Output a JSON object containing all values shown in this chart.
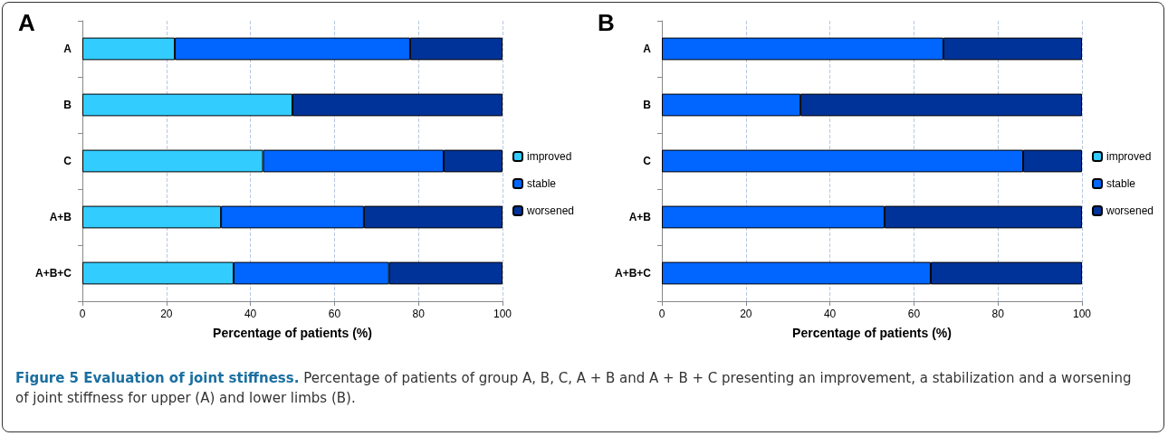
{
  "chart_data": [
    {
      "type": "bar",
      "title": "A",
      "orientation": "horizontal",
      "stacked": true,
      "categories": [
        "A",
        "B",
        "C",
        "A+B",
        "A+B+C"
      ],
      "xlabel": "Percentage of patients (%)",
      "xlim": [
        0,
        100
      ],
      "xticks": [
        0,
        20,
        40,
        60,
        80,
        100
      ],
      "grid": "x",
      "legend": "right",
      "series": [
        {
          "name": "improved",
          "color": "#33ccff",
          "values": [
            22,
            50,
            43,
            33,
            36
          ]
        },
        {
          "name": "stable",
          "color": "#0066ff",
          "values": [
            56,
            0,
            43,
            34,
            37
          ]
        },
        {
          "name": "worsened",
          "color": "#003399",
          "values": [
            22,
            50,
            14,
            33,
            27
          ]
        }
      ],
      "annotations": [
        "Figure 5 Evaluation of joint stiffness.",
        "Percentage of patients of group A, B, C, A + B and A + B + C presenting an improvement, a stabilization and a worsening of joint stiffness for upper (A) and lower limbs (B)."
      ]
    },
    {
      "type": "bar",
      "title": "B",
      "orientation": "horizontal",
      "stacked": true,
      "categories": [
        "A",
        "B",
        "C",
        "A+B",
        "A+B+C"
      ],
      "xlabel": "Percentage of patients (%)",
      "xlim": [
        0,
        100
      ],
      "xticks": [
        0,
        20,
        40,
        60,
        80,
        100
      ],
      "grid": "x",
      "legend": "right",
      "series": [
        {
          "name": "improved",
          "color": "#33ccff",
          "values": [
            0,
            0,
            0,
            0,
            0
          ]
        },
        {
          "name": "stable",
          "color": "#0066ff",
          "values": [
            67,
            33,
            86,
            53,
            64
          ]
        },
        {
          "name": "worsened",
          "color": "#003399",
          "values": [
            33,
            67,
            14,
            47,
            36
          ]
        }
      ]
    }
  ]
}
